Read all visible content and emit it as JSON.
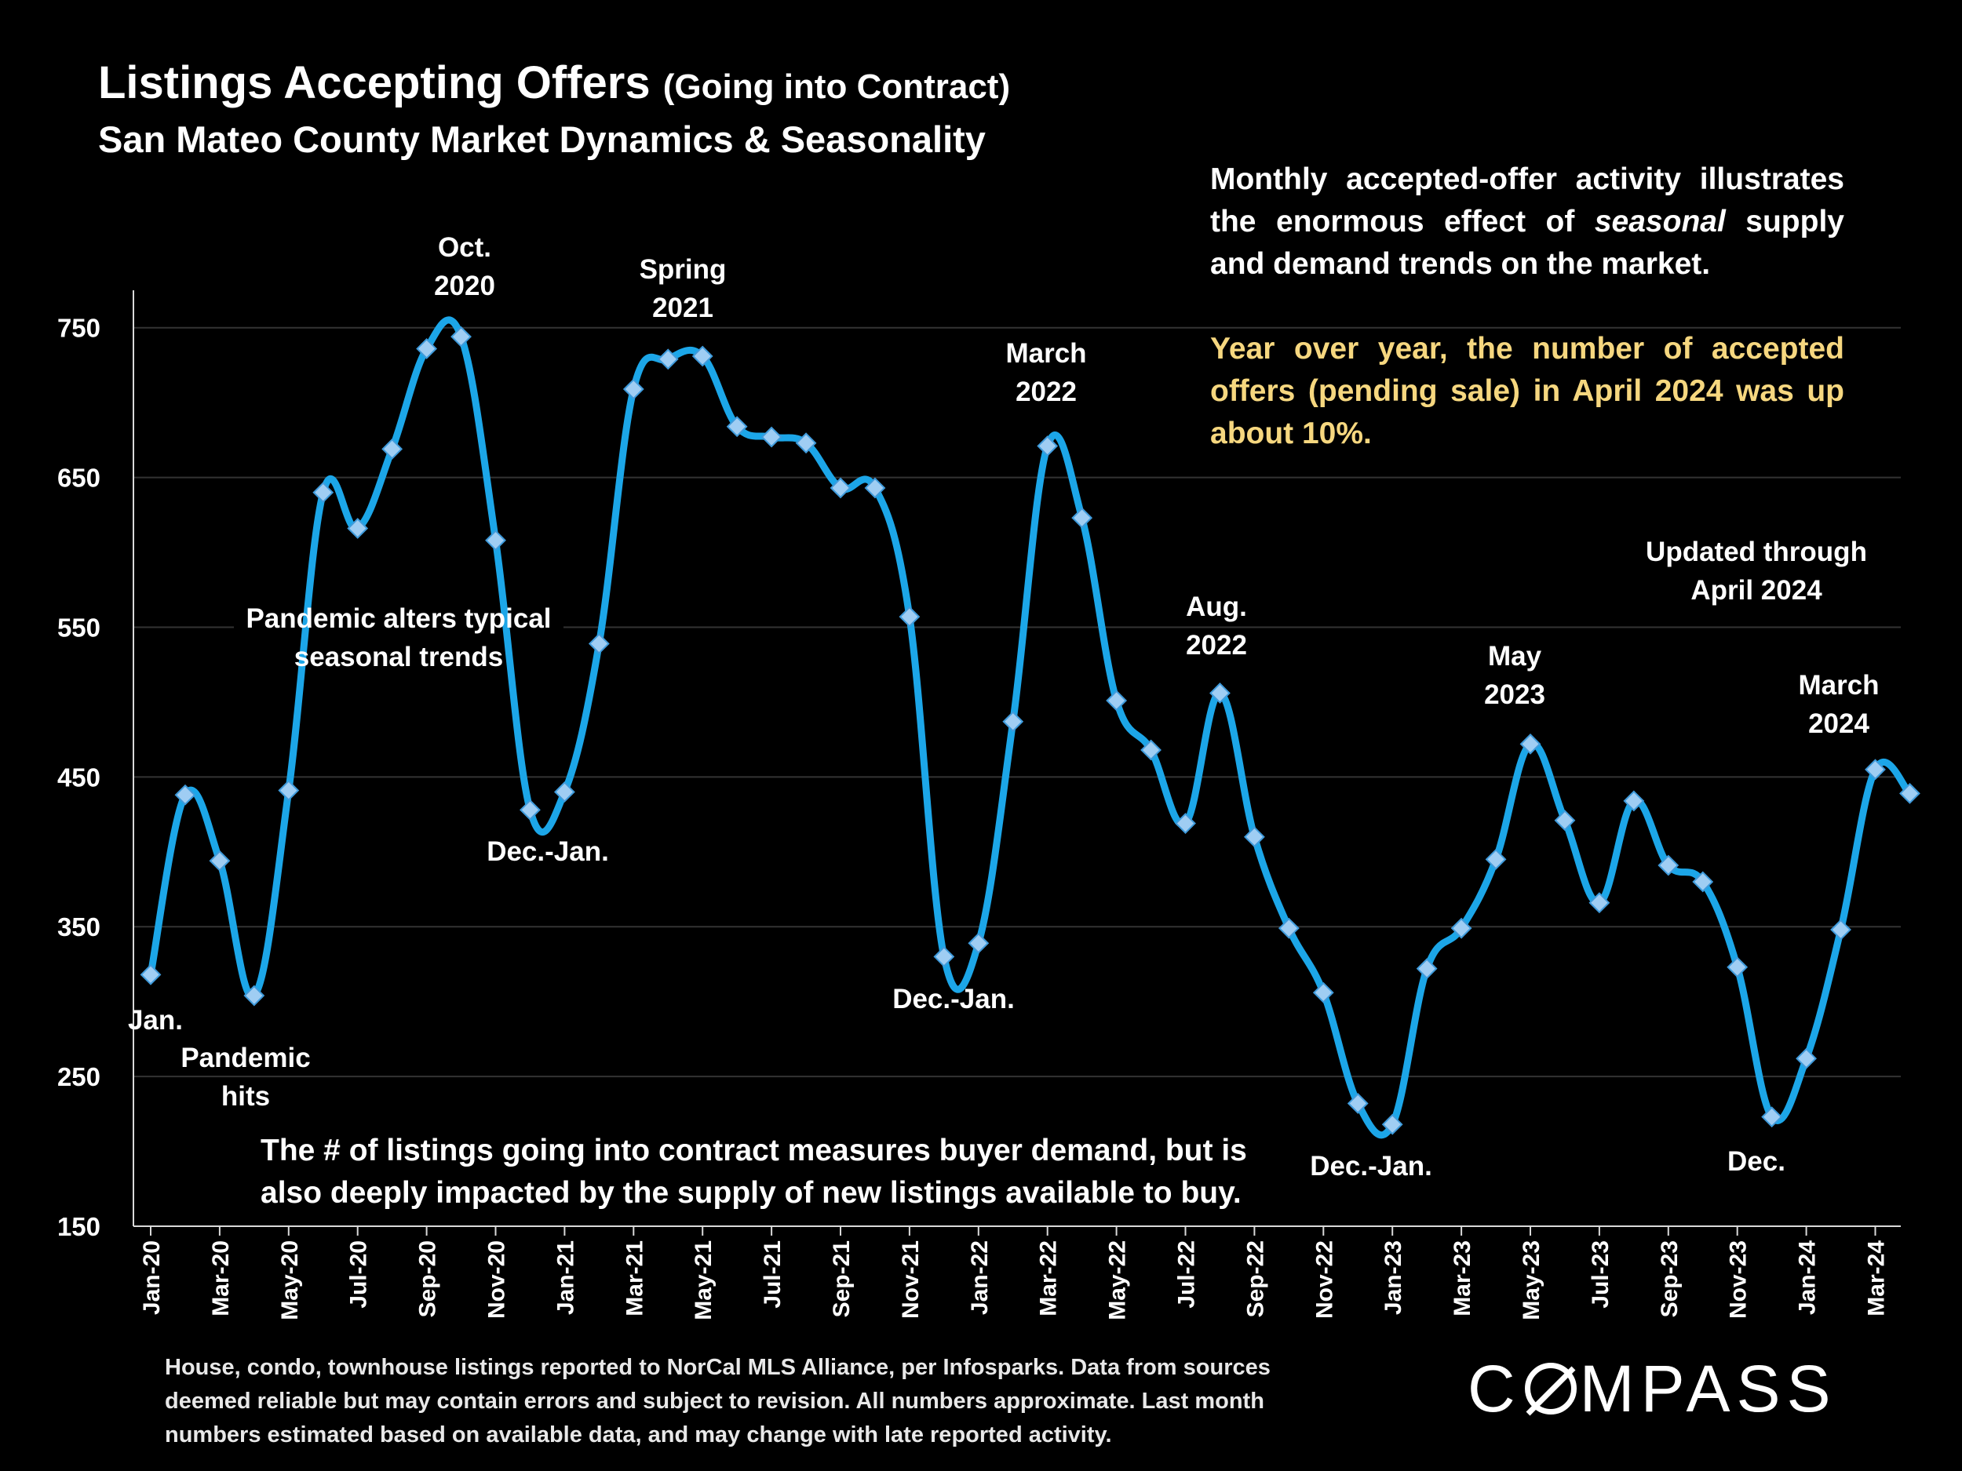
{
  "title": {
    "main": "Listings Accepting Offers",
    "sub": "(Going into Contract)",
    "subtitle": "San Mateo County Market Dynamics & Seasonality"
  },
  "notes": {
    "top_prefix": "Monthly accepted-offer activity illustrates the enormous effect of ",
    "top_emphasis": "seasonal",
    "top_suffix": " supply and demand trends on the market.",
    "yoy": "Year over year, the number of accepted offers (pending sale) in April 2024 was up about 10%.",
    "bottom": "The # of listings going into contract measures buyer demand, but is also deeply impacted by the supply of new listings available to buy."
  },
  "footer": "House, condo, townhouse listings reported to NorCal MLS Alliance, per Infosparks. Data from sources deemed reliable but may contain errors and subject to revision. All numbers approximate. Last month numbers estimated based on available data, and may change with late reported activity.",
  "brand": {
    "logo_left": "C",
    "logo_right": "MPASS"
  },
  "colors": {
    "line": "#1ca6e8",
    "marker": "#9fcdf3",
    "marker_stroke": "#3f9bdc",
    "grid": "#333333",
    "yoy_note": "#f6d77f"
  },
  "chart_data": {
    "type": "line",
    "ylim": [
      150,
      775
    ],
    "yticks": [
      150,
      250,
      350,
      450,
      550,
      650,
      750
    ],
    "x_tick_labels": [
      "Jan-20",
      "Mar-20",
      "May-20",
      "Jul-20",
      "Sep-20",
      "Nov-20",
      "Jan-21",
      "Mar-21",
      "May-21",
      "Jul-21",
      "Sep-21",
      "Nov-21",
      "Jan-22",
      "Mar-22",
      "May-22",
      "Jul-22",
      "Sep-22",
      "Nov-22",
      "Jan-23",
      "Mar-23",
      "May-23",
      "Jul-23",
      "Sep-23",
      "Nov-23",
      "Jan-24",
      "Mar-24"
    ],
    "months": [
      "Jan-20",
      "Feb-20",
      "Mar-20",
      "Apr-20",
      "May-20",
      "Jun-20",
      "Jul-20",
      "Aug-20",
      "Sep-20",
      "Oct-20",
      "Nov-20",
      "Dec-20",
      "Jan-21",
      "Feb-21",
      "Mar-21",
      "Apr-21",
      "May-21",
      "Jun-21",
      "Jul-21",
      "Aug-21",
      "Sep-21",
      "Oct-21",
      "Nov-21",
      "Dec-21",
      "Jan-22",
      "Feb-22",
      "Mar-22",
      "Apr-22",
      "May-22",
      "Jun-22",
      "Jul-22",
      "Aug-22",
      "Sep-22",
      "Oct-22",
      "Nov-22",
      "Dec-22",
      "Jan-23",
      "Feb-23",
      "Mar-23",
      "Apr-23",
      "May-23",
      "Jun-23",
      "Jul-23",
      "Aug-23",
      "Sep-23",
      "Oct-23",
      "Nov-23",
      "Dec-23",
      "Jan-24",
      "Feb-24",
      "Mar-24",
      "Apr-24"
    ],
    "values": [
      318,
      438,
      394,
      304,
      441,
      640,
      616,
      669,
      736,
      744,
      608,
      428,
      440,
      539,
      709,
      729,
      731,
      684,
      677,
      673,
      643,
      643,
      557,
      330,
      339,
      487,
      671,
      623,
      501,
      468,
      419,
      506,
      410,
      349,
      306,
      232,
      218,
      322,
      349,
      395,
      472,
      421,
      366,
      434,
      391,
      380,
      323,
      223,
      262,
      348,
      455,
      439
    ],
    "annotations": [
      {
        "label": "Jan.",
        "month": "Jan-20",
        "pos": "below"
      },
      {
        "label": "Pandemic hits",
        "month": "Apr-20",
        "pos": "below"
      },
      {
        "label": "Oct. 2020",
        "month": "Oct-20",
        "pos": "above"
      },
      {
        "label": "Pandemic alters typical seasonal trends",
        "month": "Jul-20",
        "pos": "below"
      },
      {
        "label": "Dec.-Jan.",
        "month": "Dec-20",
        "pos": "below"
      },
      {
        "label": "Spring 2021",
        "month": "Apr-21",
        "pos": "above"
      },
      {
        "label": "Dec.-Jan.",
        "month": "Dec-21",
        "pos": "below"
      },
      {
        "label": "March 2022",
        "month": "Mar-22",
        "pos": "above"
      },
      {
        "label": "Aug. 2022",
        "month": "Aug-22",
        "pos": "above"
      },
      {
        "label": "Dec.-Jan.",
        "month": "Dec-22",
        "pos": "below"
      },
      {
        "label": "May 2023",
        "month": "May-23",
        "pos": "above"
      },
      {
        "label": "Updated through April 2024",
        "month": "Feb-24",
        "pos": "above"
      },
      {
        "label": "March 2024",
        "month": "Mar-24",
        "pos": "above"
      },
      {
        "label": "Dec.",
        "month": "Dec-23",
        "pos": "below"
      }
    ]
  }
}
